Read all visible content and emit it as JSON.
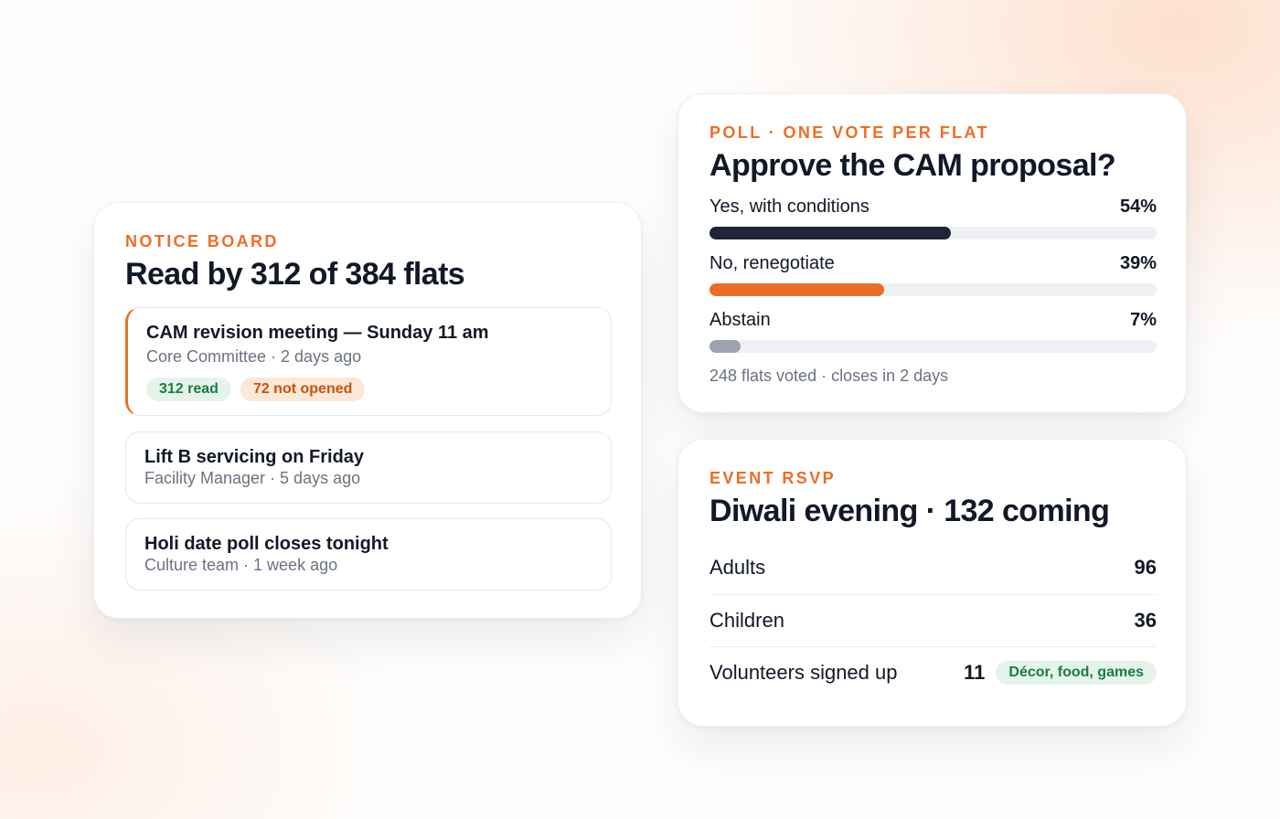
{
  "notice_board": {
    "eyebrow": "NOTICE BOARD",
    "headline": "Read by 312 of 384 flats",
    "notices": [
      {
        "title": "CAM revision meeting — Sunday 11 am",
        "meta": "Core Committee · 2 days ago",
        "read_badge": "312 read",
        "unopened_badge": "72 not opened"
      },
      {
        "title": "Lift B servicing on Friday",
        "meta": "Facility Manager · 5 days ago"
      },
      {
        "title": "Holi date poll closes tonight",
        "meta": "Culture team · 1 week ago"
      }
    ]
  },
  "poll": {
    "eyebrow": "POLL · ONE VOTE PER FLAT",
    "headline": "Approve the CAM proposal?",
    "options": [
      {
        "label": "Yes, with conditions",
        "percent_label": "54%",
        "percent": 54,
        "color": "#1f2537"
      },
      {
        "label": "No, renegotiate",
        "percent_label": "39%",
        "percent": 39,
        "color": "#ea6f26"
      },
      {
        "label": "Abstain",
        "percent_label": "7%",
        "percent": 7,
        "color": "#9ca3af"
      }
    ],
    "footer": "248 flats voted · closes in 2 days"
  },
  "rsvp": {
    "eyebrow": "EVENT RSVP",
    "headline": "Diwali evening · 132 coming",
    "rows": [
      {
        "label": "Adults",
        "value": "96"
      },
      {
        "label": "Children",
        "value": "36"
      },
      {
        "label": "Volunteers signed up",
        "value": "11",
        "tag": "Décor, food, games"
      }
    ]
  },
  "colors": {
    "accent": "#ea6f26",
    "ink": "#111827",
    "muted": "#6b7280",
    "success_bg": "#e4f4ea",
    "success_text": "#1d7b45"
  }
}
